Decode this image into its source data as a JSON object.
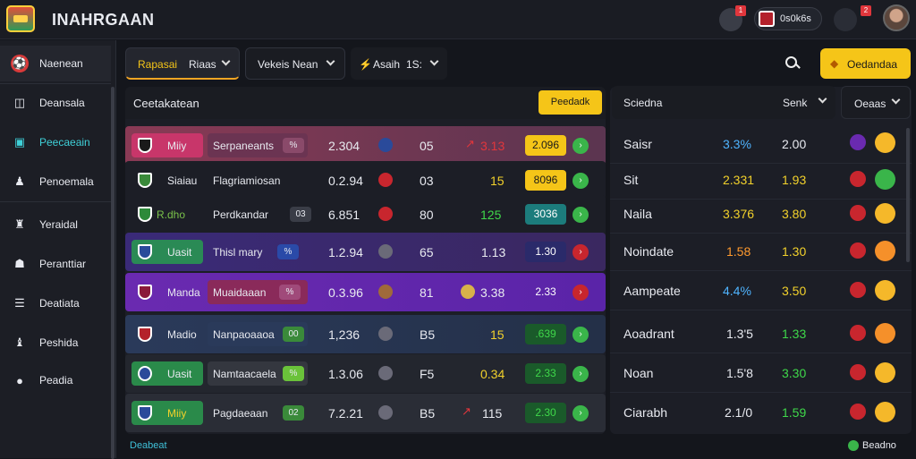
{
  "app": {
    "title": "INAHRGAAN"
  },
  "topbar": {
    "notif_badge": "1",
    "user_label": "0s0k6s",
    "msg_badge": "2"
  },
  "sidebar": {
    "items": [
      {
        "label": "Naenean",
        "icon": "soccer-icon"
      },
      {
        "label": "Deansala",
        "icon": "shield-icon"
      },
      {
        "label": "Peecaeain",
        "icon": "tablet-icon"
      },
      {
        "label": "Penoemala",
        "icon": "user-icon"
      },
      {
        "label": "Yeraidal",
        "icon": "users-icon"
      },
      {
        "label": "Peranttiar",
        "icon": "person-icon"
      },
      {
        "label": "Deatiata",
        "icon": "list-icon"
      },
      {
        "label": "Peshida",
        "icon": "trophy-icon"
      },
      {
        "label": "Peadia",
        "icon": "ball-icon"
      }
    ]
  },
  "filters": {
    "first_a": "Rapasai",
    "first_b": "Riaas",
    "second": "Vekeis Nean",
    "third_a": "Asaih",
    "third_b": "1S:",
    "cta": "Oedandaa"
  },
  "main": {
    "title": "Ceetakatean",
    "button": "Peedadk",
    "rows": [
      {
        "team": "Miiy",
        "match": "Serpaneants",
        "chip": "%",
        "val1": "2.304",
        "val2": "05",
        "val3": "3.13",
        "pill": "2.096"
      },
      {
        "team": "Siaiau",
        "match": "Flagriamiosan",
        "chip": "",
        "val1": "0.2.94",
        "val2": "03",
        "val3": "15",
        "pill": "8096"
      },
      {
        "team": "R.dho",
        "match": "Perdkandar",
        "chip": "03",
        "val1": "6.851",
        "val2": "80",
        "val3": "125",
        "pill": "3036"
      },
      {
        "team": "Uasit",
        "match": "Thisl mary",
        "chip": "%",
        "val1": "1.2.94",
        "val2": "65",
        "val3": "1.13",
        "pill": "1.30"
      },
      {
        "team": "Manda",
        "match": "Muaidaaan",
        "chip": "%",
        "val1": "0.3.96",
        "val2": "81",
        "val3": "3.38",
        "pill": "2.33"
      },
      {
        "team": "Madio",
        "match": "Nanpaoaaoa",
        "chip": "00",
        "val1": "1,236",
        "val2": "B5",
        "val3": "15",
        "pill": ".639"
      },
      {
        "team": "Uasit",
        "match": "Namtaacaela",
        "chip": "%",
        "val1": "1.3.06",
        "val2": "F5",
        "val3": "0.34",
        "pill": "2.33"
      },
      {
        "team": "Miiy",
        "match": "Pagdaeaan",
        "chip": "02",
        "val1": "7.2.21",
        "val2": "B5",
        "val3": "115",
        "pill": "2.30"
      }
    ]
  },
  "right": {
    "header": "Sciedna",
    "filter1": "Senk",
    "filter2": "Oeaas",
    "rows": [
      {
        "name": "Saisr",
        "a": "3.3%",
        "b": "2.00",
        "a_color": "#4fb4ff",
        "b_color": "#ffffff"
      },
      {
        "name": "Sit",
        "a": "2.331",
        "b": "1.93",
        "a_color": "#f2d12b",
        "b_color": "#f2d12b"
      },
      {
        "name": "Naila",
        "a": "3.376",
        "b": "3.80",
        "a_color": "#f2d12b",
        "b_color": "#f2d12b"
      },
      {
        "name": "Noindate",
        "a": "1.58",
        "b": "1.30",
        "a_color": "#ff9a2e",
        "b_color": "#f2d12b"
      },
      {
        "name": "Aampeate",
        "a": "4.4%",
        "b": "3.50",
        "a_color": "#4fb4ff",
        "b_color": "#f2d12b"
      },
      {
        "name": "Aoadrant",
        "a": "1.3'5",
        "b": "1.33",
        "a_color": "#ffffff",
        "b_color": "#3fd84a"
      },
      {
        "name": "Noan",
        "a": "1.5'8",
        "b": "3.30",
        "a_color": "#ffffff",
        "b_color": "#3fd84a"
      },
      {
        "name": "Ciarabh",
        "a": "2.1/0",
        "b": "1.59",
        "a_color": "#ffffff",
        "b_color": "#3fd84a"
      }
    ]
  },
  "footer": {
    "left": "Deabeat",
    "right": "Beadno"
  }
}
